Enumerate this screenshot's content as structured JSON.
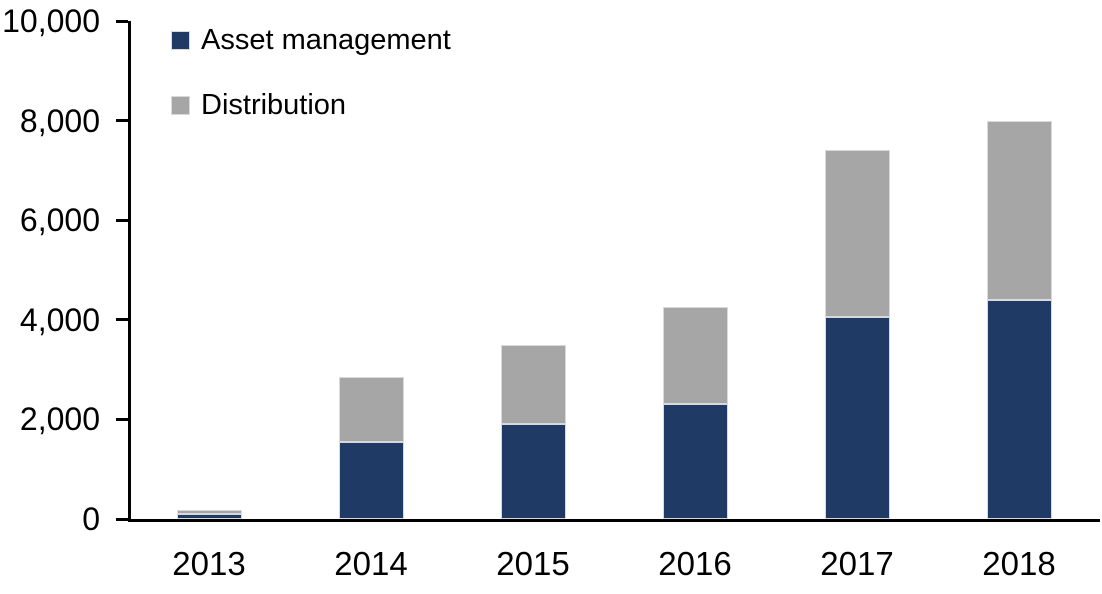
{
  "chart_data": {
    "type": "bar",
    "stacked": true,
    "title": "",
    "xlabel": "",
    "ylabel": "",
    "categories": [
      "2013",
      "2014",
      "2015",
      "2016",
      "2017",
      "2018"
    ],
    "series": [
      {
        "name": "Asset management",
        "color": "#203A66",
        "values": [
          100,
          1550,
          1900,
          2300,
          4050,
          4400
        ]
      },
      {
        "name": "Distribution",
        "color": "#A6A6A6",
        "values": [
          90,
          1300,
          1600,
          1950,
          3350,
          3600
        ]
      }
    ],
    "totals": [
      190,
      2850,
      3500,
      4250,
      7400,
      8000
    ],
    "ylim": [
      0,
      10000
    ],
    "yticks": [
      {
        "value": 0,
        "label": "0"
      },
      {
        "value": 2000,
        "label": "2,000"
      },
      {
        "value": 4000,
        "label": "4,000"
      },
      {
        "value": 6000,
        "label": "6,000"
      },
      {
        "value": 8000,
        "label": "8,000"
      },
      {
        "value": 10000,
        "label": "10,000"
      }
    ],
    "grid": false,
    "legend_position": "top-left",
    "background_color": "#FFFFFF",
    "axis_color": "#000000",
    "bar_border_color": "#D9D9D9"
  }
}
